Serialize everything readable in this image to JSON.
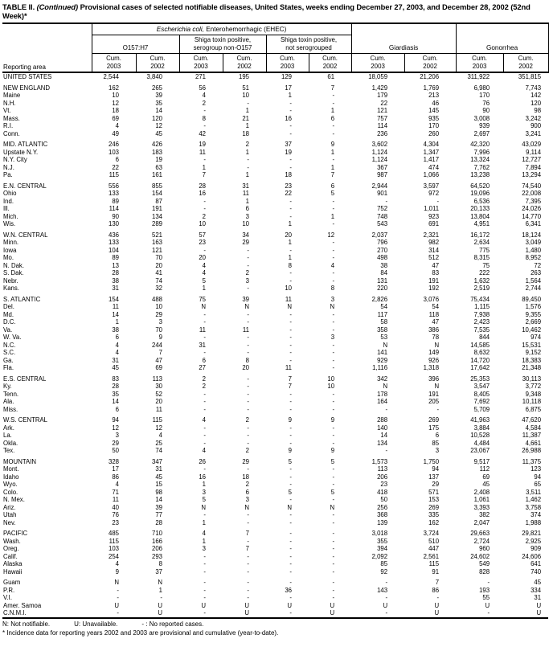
{
  "page": {
    "title_prefix": "TABLE II. ",
    "title_italic": "(Continued)",
    "title_rest": " Provisional cases of selected notifiable diseases, United States, weeks ending December 27, 2003, and December 28, 2002 (52nd Week)*"
  },
  "header": {
    "reporting_area": "Reporting area",
    "ehec_italic": "Escherichia coli,",
    "ehec_rest": " Enterohemorrhagic (EHEC)",
    "groups": [
      {
        "lines": [
          "O157:H7"
        ]
      },
      {
        "lines": [
          "Shiga toxin positive,",
          "serogroup non-O157"
        ]
      },
      {
        "lines": [
          "Shiga toxin positive,",
          "not serogrouped"
        ]
      },
      {
        "lines": [
          "Giardiasis"
        ]
      },
      {
        "lines": [
          "Gonorrhea"
        ]
      }
    ],
    "cum": "Cum.",
    "years": [
      "2003",
      "2002"
    ]
  },
  "sections": [
    {
      "rows": [
        {
          "area": "UNITED STATES",
          "cells": [
            "2,544",
            "3,840",
            "271",
            "195",
            "129",
            "61",
            "18,059",
            "21,206",
            "311,922",
            "351,815"
          ]
        }
      ]
    },
    {
      "rows": [
        {
          "area": "NEW ENGLAND",
          "cells": [
            "162",
            "265",
            "56",
            "51",
            "17",
            "7",
            "1,429",
            "1,769",
            "6,980",
            "7,743"
          ]
        },
        {
          "area": "Maine",
          "cells": [
            "10",
            "39",
            "4",
            "10",
            "1",
            "-",
            "179",
            "213",
            "170",
            "142"
          ]
        },
        {
          "area": "N.H.",
          "cells": [
            "12",
            "35",
            "2",
            "-",
            "-",
            "-",
            "22",
            "46",
            "76",
            "120"
          ]
        },
        {
          "area": "Vt.",
          "cells": [
            "18",
            "14",
            "-",
            "1",
            "-",
            "1",
            "121",
            "145",
            "90",
            "98"
          ]
        },
        {
          "area": "Mass.",
          "cells": [
            "69",
            "120",
            "8",
            "21",
            "16",
            "6",
            "757",
            "935",
            "3,008",
            "3,242"
          ]
        },
        {
          "area": "R.I.",
          "cells": [
            "4",
            "12",
            "-",
            "1",
            "-",
            "-",
            "114",
            "170",
            "939",
            "900"
          ]
        },
        {
          "area": "Conn.",
          "cells": [
            "49",
            "45",
            "42",
            "18",
            "-",
            "-",
            "236",
            "260",
            "2,697",
            "3,241"
          ]
        }
      ]
    },
    {
      "rows": [
        {
          "area": "MID. ATLANTIC",
          "cells": [
            "246",
            "426",
            "19",
            "2",
            "37",
            "9",
            "3,602",
            "4,304",
            "42,320",
            "43,029"
          ]
        },
        {
          "area": "Upstate N.Y.",
          "cells": [
            "103",
            "183",
            "11",
            "1",
            "19",
            "1",
            "1,124",
            "1,347",
            "7,996",
            "9,114"
          ]
        },
        {
          "area": "N.Y. City",
          "cells": [
            "6",
            "19",
            "-",
            "-",
            "-",
            "-",
            "1,124",
            "1,417",
            "13,324",
            "12,727"
          ]
        },
        {
          "area": "N.J.",
          "cells": [
            "22",
            "63",
            "1",
            "-",
            "-",
            "1",
            "367",
            "474",
            "7,762",
            "7,894"
          ]
        },
        {
          "area": "Pa.",
          "cells": [
            "115",
            "161",
            "7",
            "1",
            "18",
            "7",
            "987",
            "1,066",
            "13,238",
            "13,294"
          ]
        }
      ]
    },
    {
      "rows": [
        {
          "area": "E.N. CENTRAL",
          "cells": [
            "556",
            "855",
            "28",
            "31",
            "23",
            "6",
            "2,944",
            "3,597",
            "64,520",
            "74,540"
          ]
        },
        {
          "area": "Ohio",
          "cells": [
            "133",
            "154",
            "16",
            "11",
            "22",
            "5",
            "901",
            "972",
            "19,096",
            "22,008"
          ]
        },
        {
          "area": "Ind.",
          "cells": [
            "89",
            "87",
            "-",
            "1",
            "-",
            "-",
            "-",
            "-",
            "6,536",
            "7,395"
          ]
        },
        {
          "area": "Ill.",
          "cells": [
            "114",
            "191",
            "-",
            "6",
            "-",
            "-",
            "752",
            "1,011",
            "20,133",
            "24,026"
          ]
        },
        {
          "area": "Mich.",
          "cells": [
            "90",
            "134",
            "2",
            "3",
            "-",
            "1",
            "748",
            "923",
            "13,804",
            "14,770"
          ]
        },
        {
          "area": "Wis.",
          "cells": [
            "130",
            "289",
            "10",
            "10",
            "1",
            "-",
            "543",
            "691",
            "4,951",
            "6,341"
          ]
        }
      ]
    },
    {
      "rows": [
        {
          "area": "W.N. CENTRAL",
          "cells": [
            "436",
            "521",
            "57",
            "34",
            "20",
            "12",
            "2,037",
            "2,321",
            "16,172",
            "18,124"
          ]
        },
        {
          "area": "Minn.",
          "cells": [
            "133",
            "163",
            "23",
            "29",
            "1",
            "-",
            "796",
            "982",
            "2,634",
            "3,049"
          ]
        },
        {
          "area": "Iowa",
          "cells": [
            "104",
            "121",
            "-",
            "-",
            "-",
            "-",
            "270",
            "314",
            "775",
            "1,480"
          ]
        },
        {
          "area": "Mo.",
          "cells": [
            "89",
            "70",
            "20",
            "-",
            "1",
            "-",
            "498",
            "512",
            "8,315",
            "8,952"
          ]
        },
        {
          "area": "N. Dak.",
          "cells": [
            "13",
            "20",
            "4",
            "-",
            "8",
            "4",
            "38",
            "47",
            "75",
            "72"
          ]
        },
        {
          "area": "S. Dak.",
          "cells": [
            "28",
            "41",
            "4",
            "2",
            "-",
            "-",
            "84",
            "83",
            "222",
            "263"
          ]
        },
        {
          "area": "Nebr.",
          "cells": [
            "38",
            "74",
            "5",
            "3",
            "-",
            "-",
            "131",
            "191",
            "1,632",
            "1,564"
          ]
        },
        {
          "area": "Kans.",
          "cells": [
            "31",
            "32",
            "1",
            "-",
            "10",
            "8",
            "220",
            "192",
            "2,519",
            "2,744"
          ]
        }
      ]
    },
    {
      "rows": [
        {
          "area": "S. ATLANTIC",
          "cells": [
            "154",
            "488",
            "75",
            "39",
            "11",
            "3",
            "2,826",
            "3,076",
            "75,434",
            "89,450"
          ]
        },
        {
          "area": "Del.",
          "cells": [
            "11",
            "10",
            "N",
            "N",
            "N",
            "N",
            "54",
            "54",
            "1,115",
            "1,576"
          ]
        },
        {
          "area": "Md.",
          "cells": [
            "14",
            "29",
            "-",
            "-",
            "-",
            "-",
            "117",
            "118",
            "7,938",
            "9,355"
          ]
        },
        {
          "area": "D.C.",
          "cells": [
            "1",
            "3",
            "-",
            "-",
            "-",
            "-",
            "58",
            "47",
            "2,423",
            "2,669"
          ]
        },
        {
          "area": "Va.",
          "cells": [
            "38",
            "70",
            "11",
            "11",
            "-",
            "-",
            "358",
            "386",
            "7,535",
            "10,462"
          ]
        },
        {
          "area": "W. Va.",
          "cells": [
            "6",
            "9",
            "-",
            "-",
            "-",
            "3",
            "53",
            "78",
            "844",
            "974"
          ]
        },
        {
          "area": "N.C.",
          "cells": [
            "4",
            "244",
            "31",
            "-",
            "-",
            "-",
            "N",
            "N",
            "14,585",
            "15,531"
          ]
        },
        {
          "area": "S.C.",
          "cells": [
            "4",
            "7",
            "-",
            "-",
            "-",
            "-",
            "141",
            "149",
            "8,632",
            "9,152"
          ]
        },
        {
          "area": "Ga.",
          "cells": [
            "31",
            "47",
            "6",
            "8",
            "-",
            "-",
            "929",
            "926",
            "14,720",
            "18,383"
          ]
        },
        {
          "area": "Fla.",
          "cells": [
            "45",
            "69",
            "27",
            "20",
            "11",
            "-",
            "1,116",
            "1,318",
            "17,642",
            "21,348"
          ]
        }
      ]
    },
    {
      "rows": [
        {
          "area": "E.S. CENTRAL",
          "cells": [
            "83",
            "113",
            "2",
            "-",
            "7",
            "10",
            "342",
            "396",
            "25,353",
            "30,113"
          ]
        },
        {
          "area": "Ky.",
          "cells": [
            "28",
            "30",
            "2",
            "-",
            "7",
            "10",
            "N",
            "N",
            "3,547",
            "3,772"
          ]
        },
        {
          "area": "Tenn.",
          "cells": [
            "35",
            "52",
            "-",
            "-",
            "-",
            "-",
            "178",
            "191",
            "8,405",
            "9,348"
          ]
        },
        {
          "area": "Ala.",
          "cells": [
            "14",
            "20",
            "-",
            "-",
            "-",
            "-",
            "164",
            "205",
            "7,692",
            "10,118"
          ]
        },
        {
          "area": "Miss.",
          "cells": [
            "6",
            "11",
            "-",
            "-",
            "-",
            "-",
            "-",
            "-",
            "5,709",
            "6,875"
          ]
        }
      ]
    },
    {
      "rows": [
        {
          "area": "W.S. CENTRAL",
          "cells": [
            "94",
            "115",
            "4",
            "2",
            "9",
            "9",
            "288",
            "269",
            "41,963",
            "47,620"
          ]
        },
        {
          "area": "Ark.",
          "cells": [
            "12",
            "12",
            "-",
            "-",
            "-",
            "-",
            "140",
            "175",
            "3,884",
            "4,584"
          ]
        },
        {
          "area": "La.",
          "cells": [
            "3",
            "4",
            "-",
            "-",
            "-",
            "-",
            "14",
            "6",
            "10,528",
            "11,387"
          ]
        },
        {
          "area": "Okla.",
          "cells": [
            "29",
            "25",
            "-",
            "-",
            "-",
            "-",
            "134",
            "85",
            "4,484",
            "4,661"
          ]
        },
        {
          "area": "Tex.",
          "cells": [
            "50",
            "74",
            "4",
            "2",
            "9",
            "9",
            "-",
            "3",
            "23,067",
            "26,988"
          ]
        }
      ]
    },
    {
      "rows": [
        {
          "area": "MOUNTAIN",
          "cells": [
            "328",
            "347",
            "26",
            "29",
            "5",
            "5",
            "1,573",
            "1,750",
            "9,517",
            "11,375"
          ]
        },
        {
          "area": "Mont.",
          "cells": [
            "17",
            "31",
            "-",
            "-",
            "-",
            "-",
            "113",
            "94",
            "112",
            "123"
          ]
        },
        {
          "area": "Idaho",
          "cells": [
            "86",
            "45",
            "16",
            "18",
            "-",
            "-",
            "206",
            "137",
            "69",
            "94"
          ]
        },
        {
          "area": "Wyo.",
          "cells": [
            "4",
            "15",
            "1",
            "2",
            "-",
            "-",
            "23",
            "29",
            "45",
            "65"
          ]
        },
        {
          "area": "Colo.",
          "cells": [
            "71",
            "98",
            "3",
            "6",
            "5",
            "5",
            "418",
            "571",
            "2,408",
            "3,511"
          ]
        },
        {
          "area": "N. Mex.",
          "cells": [
            "11",
            "14",
            "5",
            "3",
            "-",
            "-",
            "50",
            "153",
            "1,061",
            "1,462"
          ]
        },
        {
          "area": "Ariz.",
          "cells": [
            "40",
            "39",
            "N",
            "N",
            "N",
            "N",
            "256",
            "269",
            "3,393",
            "3,758"
          ]
        },
        {
          "area": "Utah",
          "cells": [
            "76",
            "77",
            "-",
            "-",
            "-",
            "-",
            "368",
            "335",
            "382",
            "374"
          ]
        },
        {
          "area": "Nev.",
          "cells": [
            "23",
            "28",
            "1",
            "-",
            "-",
            "-",
            "139",
            "162",
            "2,047",
            "1,988"
          ]
        }
      ]
    },
    {
      "rows": [
        {
          "area": "PACIFIC",
          "cells": [
            "485",
            "710",
            "4",
            "7",
            "-",
            "-",
            "3,018",
            "3,724",
            "29,663",
            "29,821"
          ]
        },
        {
          "area": "Wash.",
          "cells": [
            "115",
            "166",
            "1",
            "-",
            "-",
            "-",
            "355",
            "510",
            "2,724",
            "2,925"
          ]
        },
        {
          "area": "Oreg.",
          "cells": [
            "103",
            "206",
            "3",
            "7",
            "-",
            "-",
            "394",
            "447",
            "960",
            "909"
          ]
        },
        {
          "area": "Calif.",
          "cells": [
            "254",
            "293",
            "-",
            "-",
            "-",
            "-",
            "2,092",
            "2,561",
            "24,602",
            "24,606"
          ]
        },
        {
          "area": "Alaska",
          "cells": [
            "4",
            "8",
            "-",
            "-",
            "-",
            "-",
            "85",
            "115",
            "549",
            "641"
          ]
        },
        {
          "area": "Hawaii",
          "cells": [
            "9",
            "37",
            "-",
            "-",
            "-",
            "-",
            "92",
            "91",
            "828",
            "740"
          ]
        }
      ]
    },
    {
      "rows": [
        {
          "area": "Guam",
          "cells": [
            "N",
            "N",
            "-",
            "-",
            "-",
            "-",
            "-",
            "7",
            "-",
            "45"
          ]
        },
        {
          "area": "P.R.",
          "cells": [
            "-",
            "1",
            "-",
            "-",
            "36",
            "-",
            "143",
            "86",
            "193",
            "334"
          ]
        },
        {
          "area": "V.I.",
          "cells": [
            "-",
            "-",
            "-",
            "-",
            "-",
            "-",
            "-",
            "-",
            "55",
            "31"
          ]
        },
        {
          "area": "Amer. Samoa",
          "cells": [
            "U",
            "U",
            "U",
            "U",
            "U",
            "U",
            "U",
            "U",
            "U",
            "U"
          ]
        },
        {
          "area": "C.N.M.I.",
          "cells": [
            "-",
            "U",
            "-",
            "U",
            "-",
            "U",
            "-",
            "U",
            "-",
            "U"
          ]
        }
      ]
    }
  ],
  "footnotes": {
    "legend": [
      "N: Not notifiable.",
      "U: Unavailable.",
      "- : No reported cases."
    ],
    "note": "* Incidence data for reporting years 2002 and 2003 are provisional and cumulative (year-to-date)."
  }
}
